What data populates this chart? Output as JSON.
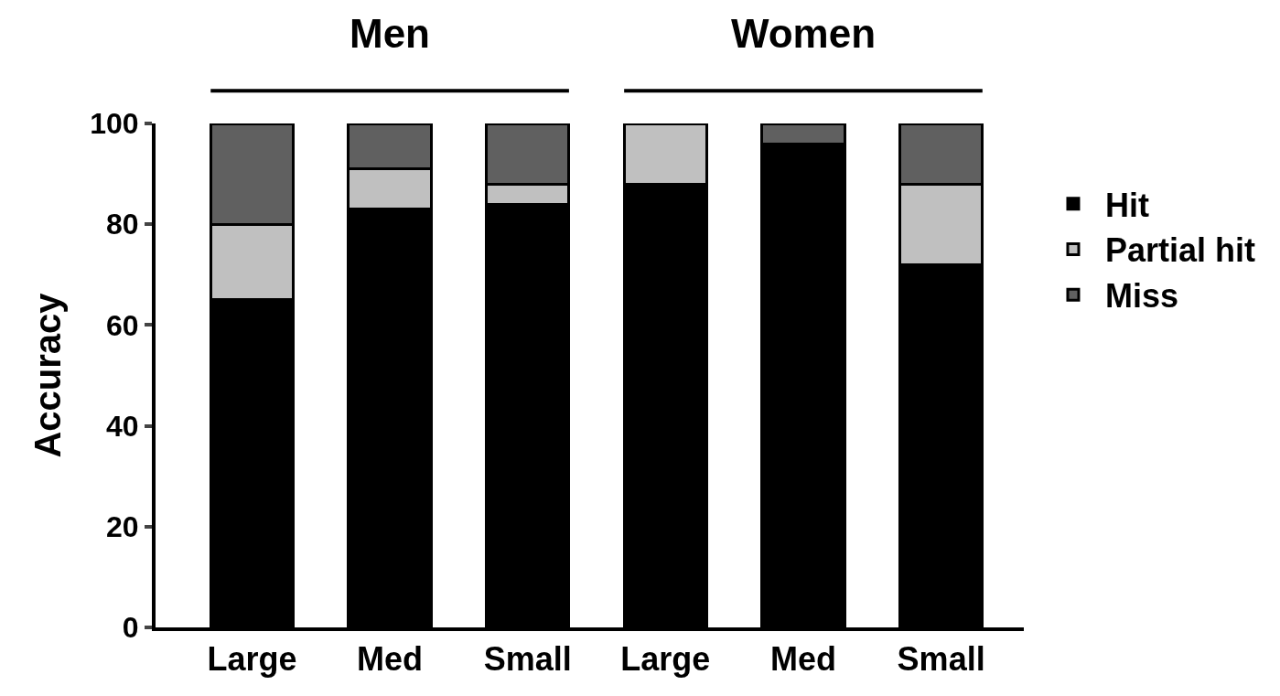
{
  "chart_data": {
    "type": "bar",
    "stacked": true,
    "ylabel": "Accuracy",
    "annotations": [
      "Men",
      "Women"
    ],
    "categories": [
      "Large",
      "Med",
      "Small",
      "Large",
      "Med",
      "Small"
    ],
    "series": [
      {
        "name": "Hit",
        "color": "#000000",
        "values": [
          65,
          83,
          84,
          88,
          96,
          72
        ]
      },
      {
        "name": "Partial hit",
        "color": "#c0c0c0",
        "values": [
          15,
          8,
          4,
          12,
          null,
          16
        ]
      },
      {
        "name": "Miss",
        "color": "#606060",
        "values": [
          20,
          9,
          12,
          null,
          4,
          12
        ]
      }
    ],
    "ylim": [
      0,
      100
    ],
    "yticks": [
      0,
      20,
      40,
      60,
      80,
      100
    ],
    "grid": false,
    "legend": "right"
  }
}
